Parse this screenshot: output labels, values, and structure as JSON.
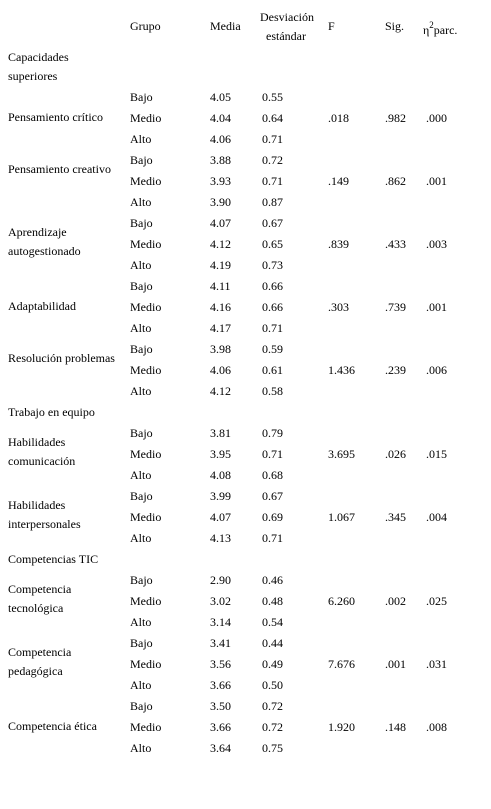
{
  "headers": {
    "grupo": "Grupo",
    "media": "Media",
    "sd_line1": "Desviación",
    "sd_line2": "estándar",
    "f": "F",
    "sig": "Sig.",
    "eta_symbol": "η",
    "eta_sup": "2",
    "eta_rest": "parc."
  },
  "sections": [
    "Capacidades superiores",
    "Trabajo en equipo",
    "Competencias TIC"
  ],
  "variables": [
    {
      "label": "Pensamiento crítico",
      "F": ".018",
      "sig": ".982",
      "eta": ".000",
      "rows": [
        {
          "grupo": "Bajo",
          "media": "4.05",
          "sd": "0.55"
        },
        {
          "grupo": "Medio",
          "media": "4.04",
          "sd": "0.64"
        },
        {
          "grupo": "Alto",
          "media": "4.06",
          "sd": "0.71"
        }
      ]
    },
    {
      "label": "Pensamiento creativo",
      "F": ".149",
      "sig": ".862",
      "eta": ".001",
      "rows": [
        {
          "grupo": "Bajo",
          "media": "3.88",
          "sd": "0.72"
        },
        {
          "grupo": "Medio",
          "media": "3.93",
          "sd": "0.71"
        },
        {
          "grupo": "Alto",
          "media": "3.90",
          "sd": "0.87"
        }
      ]
    },
    {
      "label": "Aprendizaje autogestionado",
      "F": ".839",
      "sig": ".433",
      "eta": ".003",
      "rows": [
        {
          "grupo": "Bajo",
          "media": "4.07",
          "sd": "0.67"
        },
        {
          "grupo": "Medio",
          "media": "4.12",
          "sd": "0.65"
        },
        {
          "grupo": "Alto",
          "media": "4.19",
          "sd": "0.73"
        }
      ]
    },
    {
      "label": "Adaptabilidad",
      "F": ".303",
      "sig": ".739",
      "eta": ".001",
      "rows": [
        {
          "grupo": "Bajo",
          "media": "4.11",
          "sd": "0.66"
        },
        {
          "grupo": "Medio",
          "media": "4.16",
          "sd": "0.66"
        },
        {
          "grupo": "Alto",
          "media": "4.17",
          "sd": "0.71"
        }
      ]
    },
    {
      "label": "Resolución problemas",
      "F": "1.436",
      "sig": ".239",
      "eta": ".006",
      "rows": [
        {
          "grupo": "Bajo",
          "media": "3.98",
          "sd": "0.59"
        },
        {
          "grupo": "Medio",
          "media": "4.06",
          "sd": "0.61"
        },
        {
          "grupo": "Alto",
          "media": "4.12",
          "sd": "0.58"
        }
      ]
    },
    {
      "label": "Habilidades comunicación",
      "F": "3.695",
      "sig": ".026",
      "eta": ".015",
      "rows": [
        {
          "grupo": "Bajo",
          "media": "3.81",
          "sd": "0.79"
        },
        {
          "grupo": "Medio",
          "media": "3.95",
          "sd": "0.71"
        },
        {
          "grupo": "Alto",
          "media": "4.08",
          "sd": "0.68"
        }
      ]
    },
    {
      "label": "Habilidades interpersonales",
      "F": "1.067",
      "sig": ".345",
      "eta": ".004",
      "rows": [
        {
          "grupo": "Bajo",
          "media": "3.99",
          "sd": "0.67"
        },
        {
          "grupo": "Medio",
          "media": "4.07",
          "sd": "0.69"
        },
        {
          "grupo": "Alto",
          "media": "4.13",
          "sd": "0.71"
        }
      ]
    },
    {
      "label": "Competencia tecnológica",
      "F": "6.260",
      "sig": ".002",
      "eta": ".025",
      "rows": [
        {
          "grupo": "Bajo",
          "media": "2.90",
          "sd": "0.46"
        },
        {
          "grupo": "Medio",
          "media": "3.02",
          "sd": "0.48"
        },
        {
          "grupo": "Alto",
          "media": "3.14",
          "sd": "0.54"
        }
      ]
    },
    {
      "label": "Competencia pedagógica",
      "F": "7.676",
      "sig": ".001",
      "eta": ".031",
      "rows": [
        {
          "grupo": "Bajo",
          "media": "3.41",
          "sd": "0.44"
        },
        {
          "grupo": "Medio",
          "media": "3.56",
          "sd": "0.49"
        },
        {
          "grupo": "Alto",
          "media": "3.66",
          "sd": "0.50"
        }
      ]
    },
    {
      "label": "Competencia ética",
      "F": "1.920",
      "sig": ".148",
      "eta": ".008",
      "rows": [
        {
          "grupo": "Bajo",
          "media": "3.50",
          "sd": "0.72"
        },
        {
          "grupo": "Medio",
          "media": "3.66",
          "sd": "0.72"
        },
        {
          "grupo": "Alto",
          "media": "3.64",
          "sd": "0.75"
        }
      ]
    }
  ]
}
